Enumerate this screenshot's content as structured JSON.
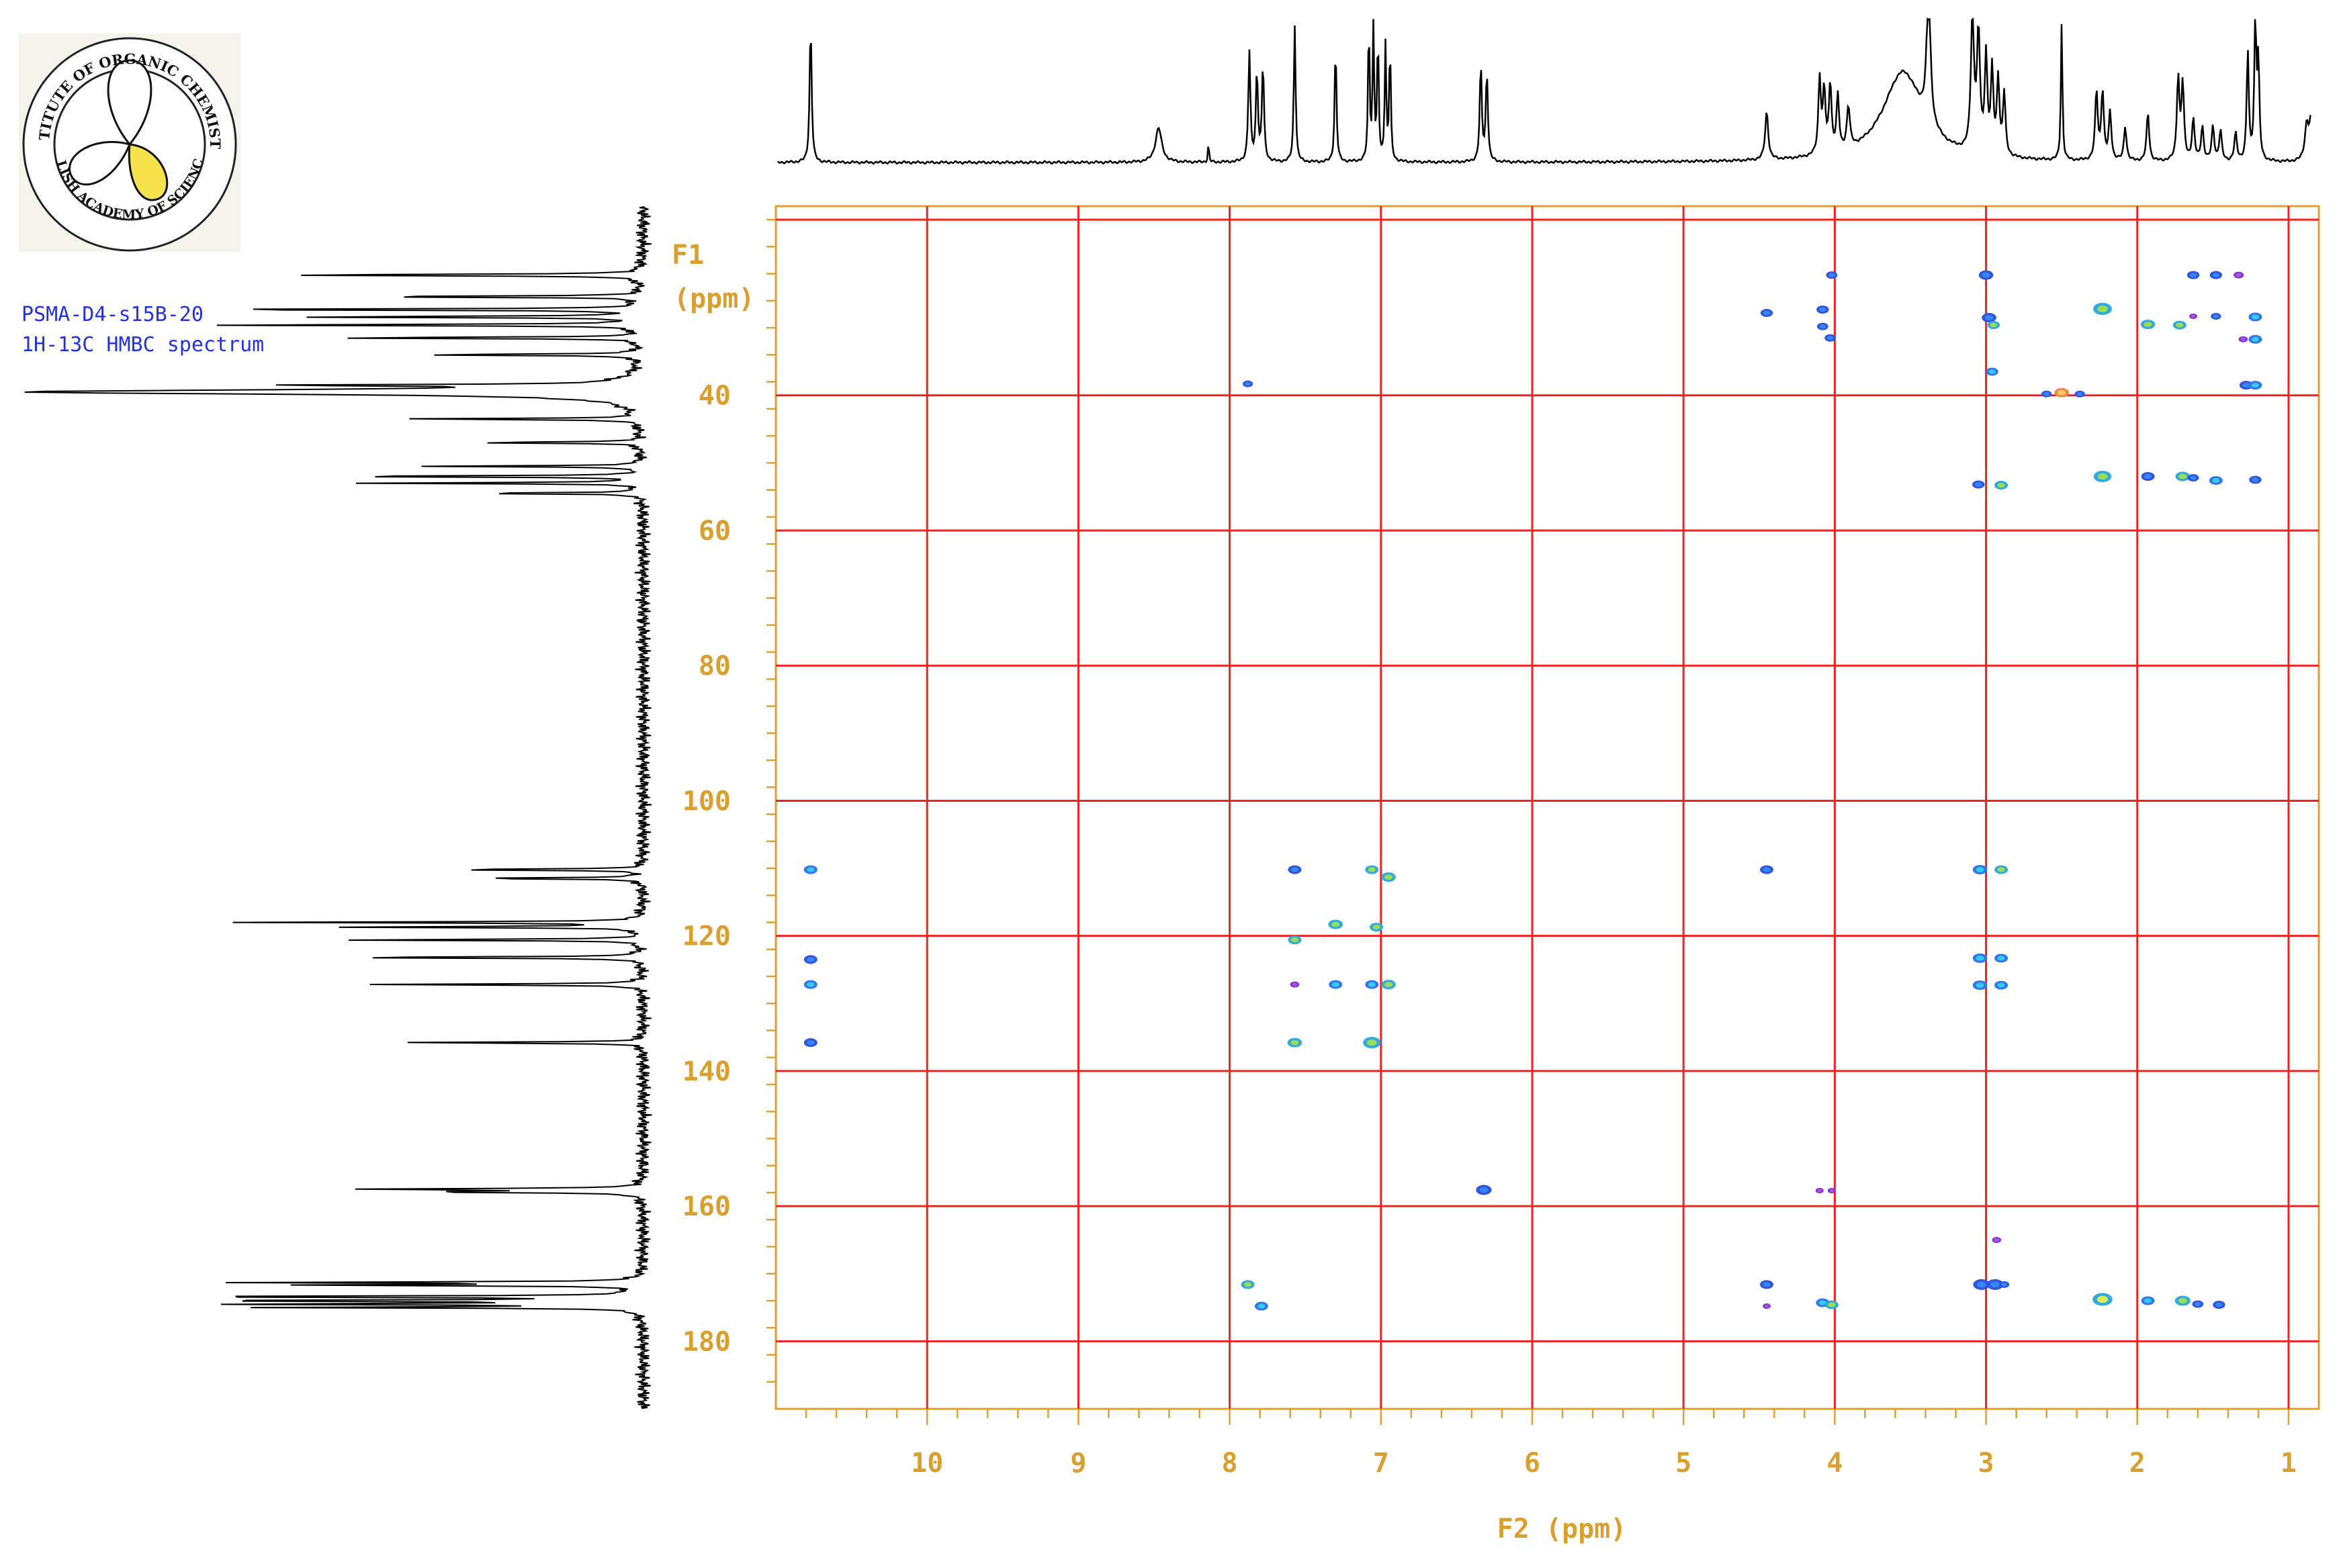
{
  "sample": {
    "name": "PSMA-D4-s15B-20",
    "experiment": "1H-13C HMBC spectrum"
  },
  "logo": {
    "ring_text_top": "INSTITUTE OF ORGANIC CHEMISTRY",
    "ring_text_bottom": "POLISH ACADEMY OF SCIENCES",
    "accent_color": "#f6e24a"
  },
  "colors": {
    "frame": "#e0a030",
    "grid": "#ee2222",
    "trace": "#000000",
    "label": "#d9a030"
  },
  "chart_data": {
    "type": "scatter",
    "subtype": "2D NMR HMBC contour plot",
    "xlabel": "F2 (ppm)",
    "ylabel_line1": "F1",
    "ylabel_line2": "(ppm)",
    "xlim": [
      11.0,
      0.8
    ],
    "ylim": [
      12,
      190
    ],
    "x_ticks": [
      "10",
      "9",
      "8",
      "7",
      "6",
      "5",
      "4",
      "3",
      "2",
      "1"
    ],
    "x_tick_values": [
      10,
      9,
      8,
      7,
      6,
      5,
      4,
      3,
      2,
      1
    ],
    "y_ticks": [
      "40",
      "60",
      "80",
      "100",
      "120",
      "140",
      "160",
      "180"
    ],
    "y_tick_values": [
      40,
      60,
      80,
      100,
      120,
      140,
      160,
      180
    ],
    "grid": true,
    "grid_x": [
      10,
      9,
      8,
      7,
      6,
      5,
      4,
      3,
      2,
      1
    ],
    "grid_y": [
      14,
      40,
      60,
      80,
      100,
      120,
      140,
      160,
      180
    ],
    "peaks": [
      {
        "x": 10.77,
        "y": 110.2,
        "c": "cyan",
        "s": 1
      },
      {
        "x": 10.77,
        "y": 123.5,
        "c": "blue",
        "s": 1
      },
      {
        "x": 10.77,
        "y": 127.2,
        "c": "cyan",
        "s": 1
      },
      {
        "x": 10.77,
        "y": 135.8,
        "c": "blue",
        "s": 1
      },
      {
        "x": 7.57,
        "y": 110.2,
        "c": "blue",
        "s": 1
      },
      {
        "x": 7.57,
        "y": 120.6,
        "c": "green",
        "s": 1
      },
      {
        "x": 7.57,
        "y": 127.2,
        "c": "purple",
        "s": 0.6
      },
      {
        "x": 7.57,
        "y": 135.8,
        "c": "green",
        "s": 1.1
      },
      {
        "x": 7.3,
        "y": 118.3,
        "c": "green",
        "s": 1.1
      },
      {
        "x": 7.3,
        "y": 127.2,
        "c": "cyan",
        "s": 1
      },
      {
        "x": 7.06,
        "y": 110.2,
        "c": "green",
        "s": 1
      },
      {
        "x": 7.03,
        "y": 118.7,
        "c": "green",
        "s": 1
      },
      {
        "x": 7.06,
        "y": 127.2,
        "c": "cyan",
        "s": 1
      },
      {
        "x": 7.06,
        "y": 135.8,
        "c": "green",
        "s": 1.4
      },
      {
        "x": 6.95,
        "y": 111.3,
        "c": "green",
        "s": 1.1
      },
      {
        "x": 6.95,
        "y": 127.2,
        "c": "green",
        "s": 1.1
      },
      {
        "x": 7.88,
        "y": 38.3,
        "c": "blue",
        "s": 0.7
      },
      {
        "x": 7.88,
        "y": 171.6,
        "c": "green",
        "s": 1
      },
      {
        "x": 7.79,
        "y": 174.8,
        "c": "cyan",
        "s": 1
      },
      {
        "x": 6.32,
        "y": 157.6,
        "c": "blue",
        "s": 1.2
      },
      {
        "x": 4.45,
        "y": 110.2,
        "c": "blue",
        "s": 1
      },
      {
        "x": 4.45,
        "y": 171.6,
        "c": "blue",
        "s": 1
      },
      {
        "x": 4.45,
        "y": 174.8,
        "c": "purple",
        "s": 0.5
      },
      {
        "x": 4.45,
        "y": 27.8,
        "c": "blue",
        "s": 0.9
      },
      {
        "x": 4.08,
        "y": 27.3,
        "c": "blue",
        "s": 0.9
      },
      {
        "x": 4.08,
        "y": 29.8,
        "c": "blue",
        "s": 0.8
      },
      {
        "x": 4.03,
        "y": 31.5,
        "c": "blue",
        "s": 0.8
      },
      {
        "x": 4.02,
        "y": 22.2,
        "c": "blue",
        "s": 0.8
      },
      {
        "x": 4.08,
        "y": 174.3,
        "c": "cyan",
        "s": 1
      },
      {
        "x": 4.02,
        "y": 174.6,
        "c": "green",
        "s": 1
      },
      {
        "x": 4.1,
        "y": 157.7,
        "c": "purple",
        "s": 0.5
      },
      {
        "x": 4.02,
        "y": 157.7,
        "c": "purple",
        "s": 0.5
      },
      {
        "x": 3.0,
        "y": 22.2,
        "c": "blue",
        "s": 1.1
      },
      {
        "x": 2.98,
        "y": 28.5,
        "c": "blue",
        "s": 1.1
      },
      {
        "x": 2.95,
        "y": 29.6,
        "c": "green",
        "s": 0.9
      },
      {
        "x": 2.96,
        "y": 36.5,
        "c": "cyan",
        "s": 0.9
      },
      {
        "x": 3.05,
        "y": 53.2,
        "c": "blue",
        "s": 0.9
      },
      {
        "x": 2.9,
        "y": 53.3,
        "c": "green",
        "s": 1
      },
      {
        "x": 3.04,
        "y": 110.2,
        "c": "cyan",
        "s": 1.1
      },
      {
        "x": 2.9,
        "y": 110.2,
        "c": "green",
        "s": 1
      },
      {
        "x": 3.04,
        "y": 123.3,
        "c": "cyan",
        "s": 1.1
      },
      {
        "x": 2.9,
        "y": 123.3,
        "c": "cyan",
        "s": 1
      },
      {
        "x": 3.04,
        "y": 127.3,
        "c": "cyan",
        "s": 1.1
      },
      {
        "x": 2.9,
        "y": 127.3,
        "c": "cyan",
        "s": 1
      },
      {
        "x": 3.03,
        "y": 171.6,
        "c": "blue",
        "s": 1.3
      },
      {
        "x": 2.94,
        "y": 171.6,
        "c": "blue",
        "s": 1.3
      },
      {
        "x": 2.88,
        "y": 171.6,
        "c": "blue",
        "s": 0.7
      },
      {
        "x": 2.93,
        "y": 165.0,
        "c": "purple",
        "s": 0.6
      },
      {
        "x": 2.6,
        "y": 39.8,
        "c": "blue",
        "s": 0.7
      },
      {
        "x": 2.5,
        "y": 39.6,
        "c": "orange",
        "s": 1.1
      },
      {
        "x": 2.38,
        "y": 39.8,
        "c": "blue",
        "s": 0.7
      },
      {
        "x": 2.23,
        "y": 27.2,
        "c": "green",
        "s": 1.5
      },
      {
        "x": 2.23,
        "y": 52.0,
        "c": "green",
        "s": 1.4
      },
      {
        "x": 2.23,
        "y": 173.8,
        "c": "yellow",
        "s": 1.6
      },
      {
        "x": 1.93,
        "y": 29.5,
        "c": "green",
        "s": 1.1
      },
      {
        "x": 1.93,
        "y": 52.0,
        "c": "blue",
        "s": 1
      },
      {
        "x": 1.93,
        "y": 174.0,
        "c": "cyan",
        "s": 1
      },
      {
        "x": 1.72,
        "y": 29.6,
        "c": "green",
        "s": 1
      },
      {
        "x": 1.7,
        "y": 52.0,
        "c": "green",
        "s": 1.1
      },
      {
        "x": 1.7,
        "y": 174.0,
        "c": "green",
        "s": 1.2
      },
      {
        "x": 1.63,
        "y": 22.2,
        "c": "blue",
        "s": 0.9
      },
      {
        "x": 1.63,
        "y": 28.3,
        "c": "purple",
        "s": 0.5
      },
      {
        "x": 1.63,
        "y": 52.2,
        "c": "blue",
        "s": 0.8
      },
      {
        "x": 1.6,
        "y": 174.5,
        "c": "blue",
        "s": 0.8
      },
      {
        "x": 1.48,
        "y": 22.2,
        "c": "blue",
        "s": 0.9
      },
      {
        "x": 1.48,
        "y": 28.3,
        "c": "blue",
        "s": 0.7
      },
      {
        "x": 1.48,
        "y": 52.6,
        "c": "cyan",
        "s": 1
      },
      {
        "x": 1.46,
        "y": 174.6,
        "c": "blue",
        "s": 0.9
      },
      {
        "x": 1.33,
        "y": 22.2,
        "c": "purple",
        "s": 0.7
      },
      {
        "x": 1.3,
        "y": 31.7,
        "c": "purple",
        "s": 0.6
      },
      {
        "x": 1.28,
        "y": 38.5,
        "c": "blue",
        "s": 1
      },
      {
        "x": 1.22,
        "y": 28.4,
        "c": "cyan",
        "s": 1
      },
      {
        "x": 1.22,
        "y": 31.7,
        "c": "cyan",
        "s": 1
      },
      {
        "x": 1.22,
        "y": 38.5,
        "c": "cyan",
        "s": 1
      },
      {
        "x": 1.22,
        "y": 52.5,
        "c": "blue",
        "s": 0.9
      }
    ],
    "f2_projection": [
      {
        "x": 10.77,
        "h": 1.0,
        "w": 0.008
      },
      {
        "x": 8.47,
        "h": 0.25,
        "w": 0.025
      },
      {
        "x": 8.14,
        "h": 0.15,
        "w": 0.004
      },
      {
        "x": 7.87,
        "h": 0.8,
        "w": 0.008
      },
      {
        "x": 7.82,
        "h": 0.65,
        "w": 0.008
      },
      {
        "x": 7.78,
        "h": 0.7,
        "w": 0.008
      },
      {
        "x": 7.57,
        "h": 1.0,
        "w": 0.007
      },
      {
        "x": 7.3,
        "h": 0.85,
        "w": 0.007
      },
      {
        "x": 7.08,
        "h": 1.0,
        "w": 0.006
      },
      {
        "x": 7.05,
        "h": 1.0,
        "w": 0.006
      },
      {
        "x": 7.02,
        "h": 0.9,
        "w": 0.006
      },
      {
        "x": 6.97,
        "h": 0.85,
        "w": 0.006
      },
      {
        "x": 6.94,
        "h": 0.85,
        "w": 0.006
      },
      {
        "x": 6.34,
        "h": 0.7,
        "w": 0.008
      },
      {
        "x": 6.3,
        "h": 0.65,
        "w": 0.008
      },
      {
        "x": 4.45,
        "h": 0.35,
        "w": 0.012
      },
      {
        "x": 4.1,
        "h": 0.55,
        "w": 0.01
      },
      {
        "x": 4.07,
        "h": 0.45,
        "w": 0.01
      },
      {
        "x": 4.03,
        "h": 0.5,
        "w": 0.01
      },
      {
        "x": 3.98,
        "h": 0.4,
        "w": 0.01
      },
      {
        "x": 3.91,
        "h": 0.3,
        "w": 0.012
      },
      {
        "x": 3.55,
        "h": 0.65,
        "w": 0.16
      },
      {
        "x": 3.38,
        "h": 1.0,
        "w": 0.015
      },
      {
        "x": 3.09,
        "h": 1.0,
        "w": 0.012
      },
      {
        "x": 3.05,
        "h": 0.85,
        "w": 0.012
      },
      {
        "x": 3.0,
        "h": 0.7,
        "w": 0.01
      },
      {
        "x": 2.96,
        "h": 0.6,
        "w": 0.01
      },
      {
        "x": 2.92,
        "h": 0.55,
        "w": 0.01
      },
      {
        "x": 2.88,
        "h": 0.45,
        "w": 0.01
      },
      {
        "x": 2.5,
        "h": 1.0,
        "w": 0.006
      },
      {
        "x": 2.27,
        "h": 0.5,
        "w": 0.01
      },
      {
        "x": 2.23,
        "h": 0.5,
        "w": 0.01
      },
      {
        "x": 2.18,
        "h": 0.35,
        "w": 0.01
      },
      {
        "x": 2.08,
        "h": 0.25,
        "w": 0.01
      },
      {
        "x": 1.93,
        "h": 0.35,
        "w": 0.01
      },
      {
        "x": 1.73,
        "h": 0.6,
        "w": 0.01
      },
      {
        "x": 1.7,
        "h": 0.55,
        "w": 0.01
      },
      {
        "x": 1.63,
        "h": 0.3,
        "w": 0.01
      },
      {
        "x": 1.57,
        "h": 0.25,
        "w": 0.01
      },
      {
        "x": 1.5,
        "h": 0.25,
        "w": 0.01
      },
      {
        "x": 1.45,
        "h": 0.22,
        "w": 0.01
      },
      {
        "x": 1.35,
        "h": 0.2,
        "w": 0.01
      },
      {
        "x": 1.27,
        "h": 0.8,
        "w": 0.008
      },
      {
        "x": 1.22,
        "h": 1.0,
        "w": 0.008
      },
      {
        "x": 1.2,
        "h": 0.7,
        "w": 0.008
      },
      {
        "x": 0.88,
        "h": 0.25,
        "w": 0.015
      },
      {
        "x": 0.85,
        "h": 0.3,
        "w": 0.015
      }
    ],
    "f1_projection": [
      {
        "y": 22.2,
        "h": 0.6,
        "w": 0.12
      },
      {
        "y": 25.4,
        "h": 0.5,
        "w": 0.1
      },
      {
        "y": 27.3,
        "h": 0.8,
        "w": 0.1
      },
      {
        "y": 28.4,
        "h": 0.6,
        "w": 0.1
      },
      {
        "y": 29.6,
        "h": 0.75,
        "w": 0.1
      },
      {
        "y": 31.5,
        "h": 0.55,
        "w": 0.1
      },
      {
        "y": 34.0,
        "h": 0.4,
        "w": 0.1
      },
      {
        "y": 38.5,
        "h": 0.55,
        "w": 0.1
      },
      {
        "y": 39.5,
        "h": 1.0,
        "w": 0.4
      },
      {
        "y": 43.5,
        "h": 0.4,
        "w": 0.1
      },
      {
        "y": 47.0,
        "h": 0.3,
        "w": 0.1
      },
      {
        "y": 50.5,
        "h": 0.35,
        "w": 0.1
      },
      {
        "y": 52.0,
        "h": 0.55,
        "w": 0.1
      },
      {
        "y": 53.0,
        "h": 0.45,
        "w": 0.1
      },
      {
        "y": 54.5,
        "h": 0.3,
        "w": 0.1
      },
      {
        "y": 110.2,
        "h": 0.35,
        "w": 0.1
      },
      {
        "y": 111.5,
        "h": 0.3,
        "w": 0.1
      },
      {
        "y": 118.0,
        "h": 0.65,
        "w": 0.1
      },
      {
        "y": 118.7,
        "h": 0.5,
        "w": 0.1
      },
      {
        "y": 120.6,
        "h": 0.5,
        "w": 0.1
      },
      {
        "y": 123.2,
        "h": 0.55,
        "w": 0.1
      },
      {
        "y": 127.2,
        "h": 0.45,
        "w": 0.1
      },
      {
        "y": 135.8,
        "h": 0.4,
        "w": 0.1
      },
      {
        "y": 157.5,
        "h": 0.45,
        "w": 0.12
      },
      {
        "y": 157.9,
        "h": 0.35,
        "w": 0.12
      },
      {
        "y": 171.3,
        "h": 0.65,
        "w": 0.1
      },
      {
        "y": 171.7,
        "h": 0.55,
        "w": 0.1
      },
      {
        "y": 173.4,
        "h": 0.85,
        "w": 0.1
      },
      {
        "y": 174.0,
        "h": 0.8,
        "w": 0.1
      },
      {
        "y": 174.5,
        "h": 0.7,
        "w": 0.1
      },
      {
        "y": 175.0,
        "h": 0.6,
        "w": 0.1
      }
    ]
  }
}
